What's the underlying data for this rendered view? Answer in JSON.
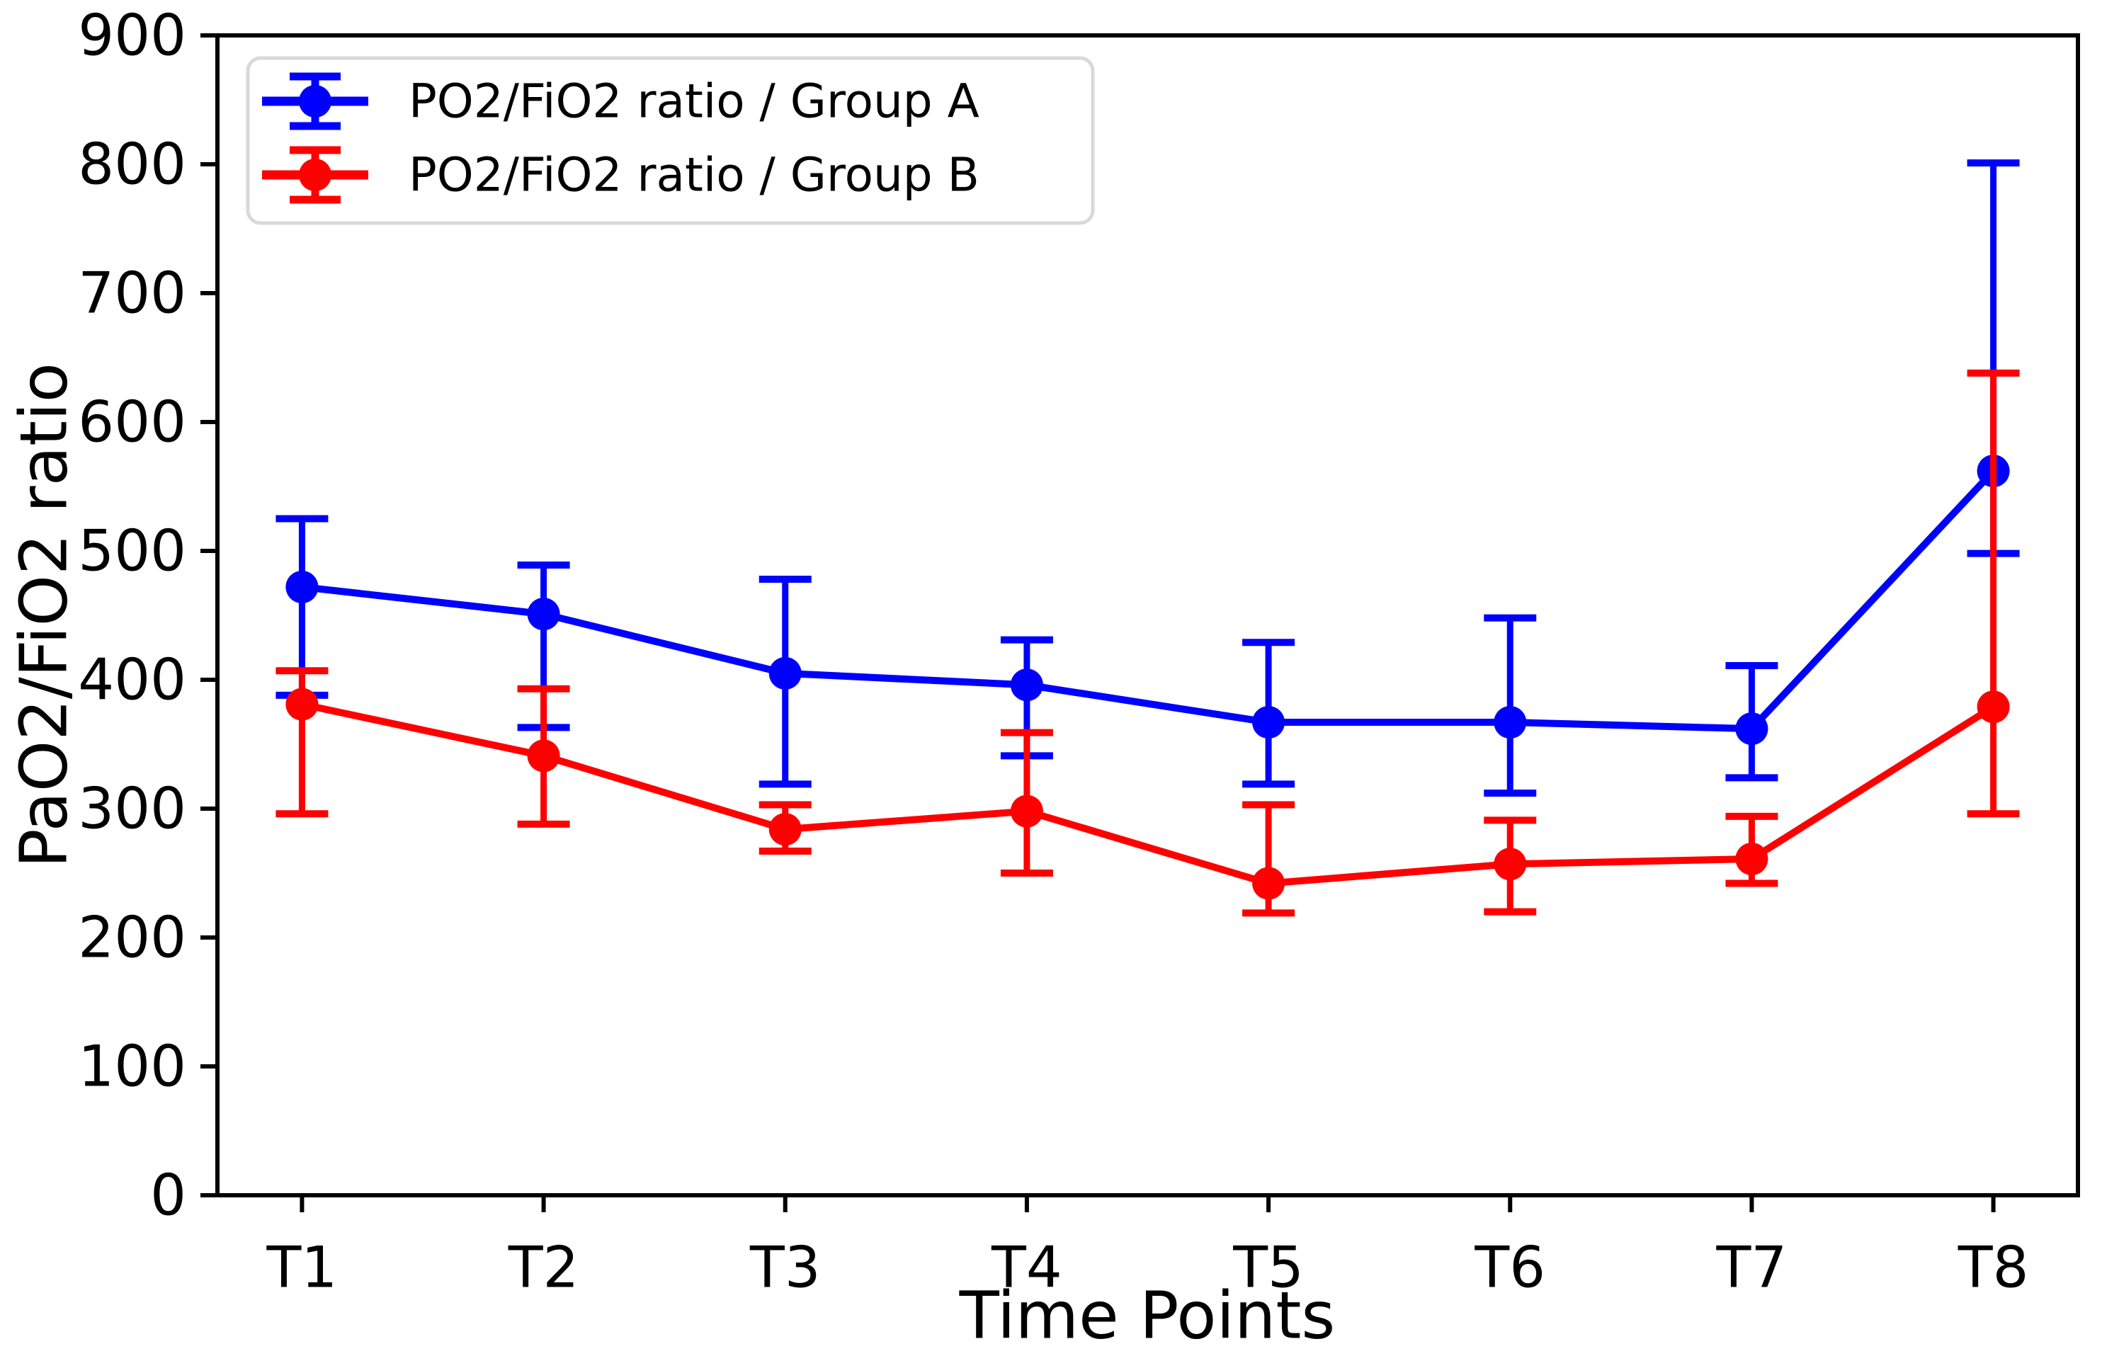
{
  "chart_data": {
    "type": "line",
    "error_bars": true,
    "title": "",
    "xlabel": "Time Points",
    "ylabel": "PaO2/FiO2 ratio",
    "categories": [
      "T1",
      "T2",
      "T3",
      "T4",
      "T5",
      "T6",
      "T7",
      "T8"
    ],
    "ylim": [
      0,
      900
    ],
    "yticks": [
      0,
      100,
      200,
      300,
      400,
      500,
      600,
      700,
      800,
      900
    ],
    "grid": false,
    "legend_position": "upper left",
    "background_color": "#ffffff",
    "axis_color": "#000000",
    "legend_border_color": "#d9d9d9",
    "series": [
      {
        "name": "PO2/FiO2 ratio / Group A",
        "color": "#0000ff",
        "marker": "circle",
        "values": [
          472,
          451,
          405,
          396,
          367,
          367,
          362,
          562
        ],
        "upper_caps": [
          525,
          489,
          478,
          431,
          429,
          448,
          411,
          801
        ],
        "lower_caps": [
          388,
          363,
          319,
          341,
          319,
          312,
          324,
          498
        ]
      },
      {
        "name": "PO2/FiO2 ratio / Group B",
        "color": "#ff0000",
        "marker": "circle",
        "values": [
          381,
          341,
          284,
          298,
          242,
          257,
          261,
          379
        ],
        "upper_caps": [
          407,
          393,
          303,
          359,
          303,
          291,
          294,
          638
        ],
        "lower_caps": [
          296,
          288,
          267,
          250,
          219,
          220,
          242,
          296
        ]
      }
    ]
  }
}
